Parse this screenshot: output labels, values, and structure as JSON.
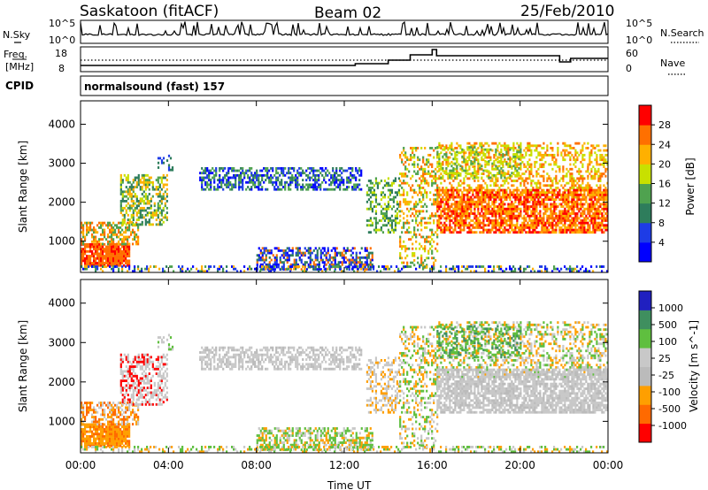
{
  "header": {
    "station": "Saskatoon (fitACF)",
    "beam": "Beam 02",
    "date": "25/Feb/2010",
    "cpid_label": "CPID",
    "cpid_value": "normalsound (fast) 157"
  },
  "status_panels": {
    "nsky": {
      "left_label": "N.Sky",
      "left_ticks": [
        "10^5",
        "10^0"
      ],
      "right_label": "N.Search",
      "right_ticks": [
        "10^5",
        "10^0"
      ]
    },
    "freq": {
      "left_label_1": "Freq.",
      "left_label_2": "[MHz]",
      "left_ticks": [
        "18",
        "8"
      ],
      "right_label": "Nave",
      "right_ticks": [
        "60",
        "0"
      ]
    }
  },
  "chart_data": [
    {
      "type": "heatmap",
      "panel": "power",
      "ylabel": "Slant Range [km]",
      "yticks": [
        "4000",
        "3000",
        "2000",
        "1000"
      ],
      "ylim": [
        200,
        4600
      ],
      "colorbar": {
        "label": "Power [dB]",
        "ticks": [
          "28",
          "24",
          "20",
          "16",
          "12",
          "8",
          "4"
        ],
        "range": [
          0,
          30
        ],
        "colors": [
          "#0000ff",
          "#1e3ce6",
          "#2e7d5c",
          "#4fa24f",
          "#c8e000",
          "#ffb000",
          "#ff7000",
          "#ff0000"
        ]
      },
      "scatter_regions_description_key": "power_regions"
    },
    {
      "type": "heatmap",
      "panel": "velocity",
      "ylabel": "Slant Range [km]",
      "yticks": [
        "4000",
        "3000",
        "2000",
        "1000"
      ],
      "ylim": [
        200,
        4600
      ],
      "colorbar": {
        "label": "Velocity [m s^-1]",
        "ticks": [
          "1000",
          "500",
          "100",
          "25",
          "-25",
          "-100",
          "-500",
          "-1000"
        ],
        "range": [
          -1000,
          1000
        ],
        "colors": [
          "#ff0000",
          "#ff6a00",
          "#ff9f00",
          "#bbbbbb",
          "#c8c8c8",
          "#5fbf3f",
          "#3f8f5f",
          "#2020c0"
        ]
      }
    }
  ],
  "xaxis": {
    "label": "Time UT",
    "ticks": [
      "00:00",
      "04:00",
      "08:00",
      "12:00",
      "16:00",
      "20:00",
      "00:00"
    ],
    "xlim": [
      0,
      24
    ]
  }
}
